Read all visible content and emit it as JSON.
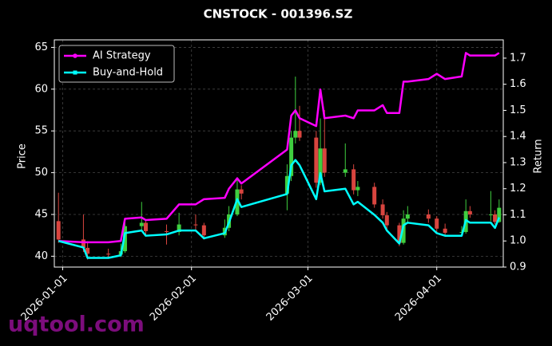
{
  "chart_data": {
    "type": "candlestick",
    "title": "CNSTOCK - 001396.SZ",
    "ylabel": "Price",
    "y2label": "Return",
    "watermark": "uqtool.com",
    "legend": "upper left",
    "grid": true,
    "up_color": "#3fcf3f",
    "down_color": "#d9453f",
    "x": [
      "2025-12-31",
      "2026-01-06",
      "2026-01-07",
      "2026-01-12",
      "2026-01-15",
      "2026-01-16",
      "2026-01-20",
      "2026-01-21",
      "2026-01-26",
      "2026-01-29",
      "2026-02-02",
      "2026-02-04",
      "2026-02-09",
      "2026-02-10",
      "2026-02-12",
      "2026-02-13",
      "2026-02-24",
      "2026-02-25",
      "2026-02-26",
      "2026-02-27",
      "2026-03-03",
      "2026-03-04",
      "2026-03-05",
      "2026-03-10",
      "2026-03-12",
      "2026-03-13",
      "2026-03-17",
      "2026-03-19",
      "2026-03-20",
      "2026-03-23",
      "2026-03-24",
      "2026-03-25",
      "2026-03-30",
      "2026-04-01",
      "2026-04-03",
      "2026-04-07",
      "2026-04-08",
      "2026-04-09",
      "2026-04-14",
      "2026-04-15",
      "2026-04-16"
    ],
    "open": [
      44.2,
      42.0,
      41.0,
      40.3,
      40.2,
      40.6,
      43.6,
      44.0,
      43.0,
      42.9,
      43.8,
      43.7,
      42.5,
      43.4,
      45.0,
      48.0,
      47.5,
      49.6,
      54.2,
      55.0,
      54.2,
      48.8,
      52.9,
      50.0,
      50.4,
      47.9,
      48.3,
      46.2,
      44.9,
      43.7,
      41.6,
      44.5,
      45.0,
      44.5,
      43.3,
      42.8,
      42.9,
      45.4,
      45.0,
      45.0,
      44.1
    ],
    "high": [
      47.6,
      45.0,
      41.8,
      40.9,
      41.5,
      44.5,
      46.5,
      44.3,
      43.8,
      45.2,
      45.0,
      44.0,
      44.4,
      46.0,
      49.2,
      48.5,
      51.0,
      55.0,
      61.5,
      58.0,
      55.0,
      56.5,
      57.5,
      53.5,
      51.0,
      49.0,
      48.8,
      46.8,
      45.3,
      44.0,
      45.5,
      46.0,
      45.6,
      44.8,
      43.9,
      43.6,
      46.8,
      46.0,
      47.8,
      45.5,
      46.8
    ],
    "low": [
      41.6,
      40.5,
      39.6,
      39.8,
      39.9,
      40.4,
      43.0,
      42.5,
      41.4,
      42.5,
      43.2,
      42.0,
      42.2,
      43.0,
      44.8,
      46.8,
      45.5,
      49.0,
      53.5,
      53.8,
      48.2,
      48.5,
      49.5,
      49.5,
      47.4,
      47.2,
      45.8,
      44.5,
      43.2,
      41.2,
      41.4,
      44.0,
      44.0,
      42.8,
      42.5,
      42.4,
      42.7,
      44.6,
      44.2,
      43.8,
      44.0
    ],
    "close": [
      42.0,
      41.0,
      40.3,
      40.2,
      40.6,
      43.6,
      44.0,
      43.0,
      42.9,
      43.8,
      43.7,
      42.5,
      43.4,
      45.0,
      48.0,
      47.5,
      49.6,
      54.2,
      55.0,
      54.2,
      48.8,
      52.9,
      50.0,
      50.4,
      47.9,
      48.3,
      46.2,
      44.9,
      43.7,
      41.6,
      44.5,
      45.0,
      44.5,
      43.3,
      42.8,
      42.9,
      45.4,
      45.0,
      45.0,
      44.1,
      45.8
    ],
    "series": [
      {
        "name": "AI Strategy",
        "color": "#ff00ff",
        "axis": "y2",
        "marker": "circle",
        "values": [
          1.0,
          0.995,
          0.995,
          0.995,
          1.0,
          1.085,
          1.09,
          1.08,
          1.085,
          1.14,
          1.14,
          1.16,
          1.165,
          1.2,
          1.24,
          1.22,
          1.35,
          1.48,
          1.5,
          1.47,
          1.44,
          1.58,
          1.47,
          1.48,
          1.47,
          1.5,
          1.5,
          1.52,
          1.49,
          1.49,
          1.61,
          1.61,
          1.62,
          1.64,
          1.62,
          1.63,
          1.72,
          1.71,
          1.71,
          1.71,
          1.72
        ]
      },
      {
        "name": "Buy-and-Hold",
        "color": "#00ffff",
        "axis": "y2",
        "marker": "square",
        "values": [
          1.0,
          0.975,
          0.935,
          0.935,
          0.945,
          1.03,
          1.04,
          1.02,
          1.025,
          1.04,
          1.04,
          1.01,
          1.03,
          1.07,
          1.16,
          1.13,
          1.18,
          1.29,
          1.31,
          1.29,
          1.16,
          1.26,
          1.19,
          1.2,
          1.14,
          1.15,
          1.1,
          1.07,
          1.04,
          0.99,
          1.06,
          1.07,
          1.06,
          1.03,
          1.02,
          1.02,
          1.08,
          1.07,
          1.07,
          1.05,
          1.09
        ]
      }
    ],
    "xlim": [
      "2025-12-30",
      "2026-04-17"
    ],
    "xticks": [
      "2026-01-01",
      "2026-02-01",
      "2026-03-01",
      "2026-04-01"
    ],
    "ylim": [
      38.7,
      65.9
    ],
    "yticks": [
      40,
      45,
      50,
      55,
      60,
      65
    ],
    "y2lim": [
      0.9,
      1.77
    ],
    "y2ticks": [
      0.9,
      {
        "value": 1,
        "label": "1.0"
      },
      1.1,
      1.2,
      1.3,
      1.4,
      1.5,
      1.6,
      1.7
    ]
  }
}
